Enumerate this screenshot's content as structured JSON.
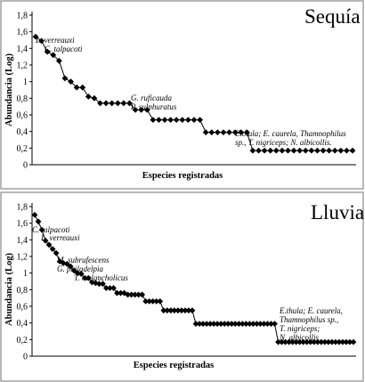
{
  "chart_data": [
    {
      "type": "scatter",
      "title": "Sequía",
      "xlabel": "Especies registradas",
      "ylabel": "Abundancia (Log)",
      "ylim": [
        0,
        1.8
      ],
      "yticks": [
        "0",
        "0,2",
        "0,4",
        "0,6",
        "0,8",
        "1",
        "1,2",
        "1,4",
        "1,6",
        "1,8"
      ],
      "grid": false,
      "series": [
        {
          "x": [
            1,
            2,
            3,
            4,
            5,
            6,
            7,
            8,
            9,
            10,
            11,
            12,
            13,
            14,
            15,
            16,
            17,
            18,
            19,
            20,
            21,
            22,
            23,
            24,
            25,
            26,
            27,
            28,
            29,
            30,
            31,
            32,
            33,
            34,
            35,
            36,
            37,
            38,
            39,
            40,
            41,
            42,
            43,
            44,
            45,
            46,
            47,
            48,
            49,
            50,
            51,
            52,
            53,
            54,
            55
          ],
          "values": [
            1.54,
            1.49,
            1.36,
            1.32,
            1.25,
            1.04,
            1.0,
            0.93,
            0.93,
            0.82,
            0.8,
            0.74,
            0.74,
            0.74,
            0.74,
            0.74,
            0.74,
            0.66,
            0.66,
            0.66,
            0.54,
            0.54,
            0.54,
            0.54,
            0.54,
            0.54,
            0.54,
            0.54,
            0.54,
            0.39,
            0.39,
            0.39,
            0.39,
            0.39,
            0.39,
            0.39,
            0.39,
            0.17,
            0.17,
            0.17,
            0.17,
            0.17,
            0.17,
            0.17,
            0.17,
            0.17,
            0.17,
            0.17,
            0.17,
            0.17,
            0.17,
            0.17,
            0.17,
            0.17,
            0.17
          ]
        }
      ],
      "annotations": [
        {
          "text": "L. verreauxi",
          "x": 1
        },
        {
          "text": "C. talpacoti",
          "x": 2
        },
        {
          "text": "G. ruficauda",
          "x": 18
        },
        {
          "text": "P. sulphuratus",
          "x": 19
        },
        {
          "text": "E.thula; E. caurela, Thamnophilus",
          "x": 38
        },
        {
          "text": "sp., T. nigriceps; N. albicollis.",
          "x": 38
        }
      ]
    },
    {
      "type": "scatter",
      "title": "Lluvia",
      "xlabel": "Especies registradas",
      "ylabel": "Abundancia (Log)",
      "ylim": [
        0,
        1.8
      ],
      "yticks": [
        "0",
        "0,2",
        "0,4",
        "0,6",
        "0,8",
        "1",
        "1,2",
        "1,4",
        "1,6",
        "1,8"
      ],
      "grid": false,
      "series": [
        {
          "x": [
            1,
            2,
            3,
            4,
            5,
            6,
            7,
            8,
            9,
            10,
            11,
            12,
            13,
            14,
            15,
            16,
            17,
            18,
            19,
            20,
            21,
            22,
            23,
            24,
            25,
            26,
            27,
            28,
            29,
            30,
            31,
            32,
            33,
            34,
            35,
            36,
            37,
            38,
            39,
            40,
            41,
            42,
            43,
            44,
            45,
            46,
            47,
            48,
            49,
            50,
            51,
            52,
            53,
            54,
            55,
            56,
            57,
            58,
            59,
            60,
            61,
            62,
            63,
            64,
            65,
            66,
            67,
            68,
            69,
            70,
            71,
            72,
            73,
            74,
            75,
            76,
            77,
            78,
            79,
            80,
            81,
            82,
            83,
            84,
            85,
            86,
            87,
            88,
            89,
            90
          ],
          "values": [
            1.7,
            1.62,
            1.52,
            1.39,
            1.34,
            1.29,
            1.24,
            1.14,
            1.12,
            1.11,
            1.08,
            1.03,
            1.0,
            0.99,
            0.94,
            0.94,
            0.89,
            0.88,
            0.87,
            0.87,
            0.82,
            0.82,
            0.82,
            0.76,
            0.76,
            0.76,
            0.74,
            0.74,
            0.74,
            0.74,
            0.74,
            0.66,
            0.66,
            0.66,
            0.66,
            0.66,
            0.55,
            0.55,
            0.55,
            0.55,
            0.55,
            0.55,
            0.55,
            0.55,
            0.55,
            0.39,
            0.39,
            0.39,
            0.39,
            0.39,
            0.39,
            0.39,
            0.39,
            0.39,
            0.39,
            0.39,
            0.39,
            0.39,
            0.39,
            0.39,
            0.39,
            0.39,
            0.39,
            0.39,
            0.39,
            0.39,
            0.39,
            0.39,
            0.17,
            0.17,
            0.17,
            0.17,
            0.17,
            0.17,
            0.17,
            0.17,
            0.17,
            0.17,
            0.17,
            0.17,
            0.17,
            0.17,
            0.17,
            0.17,
            0.17,
            0.17,
            0.17,
            0.17,
            0.17,
            0.17
          ]
        }
      ],
      "annotations": [
        {
          "text": "C. talpacoti",
          "x": 1
        },
        {
          "text": "L. verreauxi",
          "x": 2
        },
        {
          "text": "M. subrufescens",
          "x": 5
        },
        {
          "text": "G. philadelpia",
          "x": 7
        },
        {
          "text": "T. melancholicus",
          "x": 12
        },
        {
          "text": "E.thula; E. caurela,",
          "x": 69
        },
        {
          "text": "Thamnophilus sp.,",
          "x": 69
        },
        {
          "text": "T. nigriceps;",
          "x": 69
        },
        {
          "text": "N. albicollis",
          "x": 69
        }
      ]
    }
  ]
}
